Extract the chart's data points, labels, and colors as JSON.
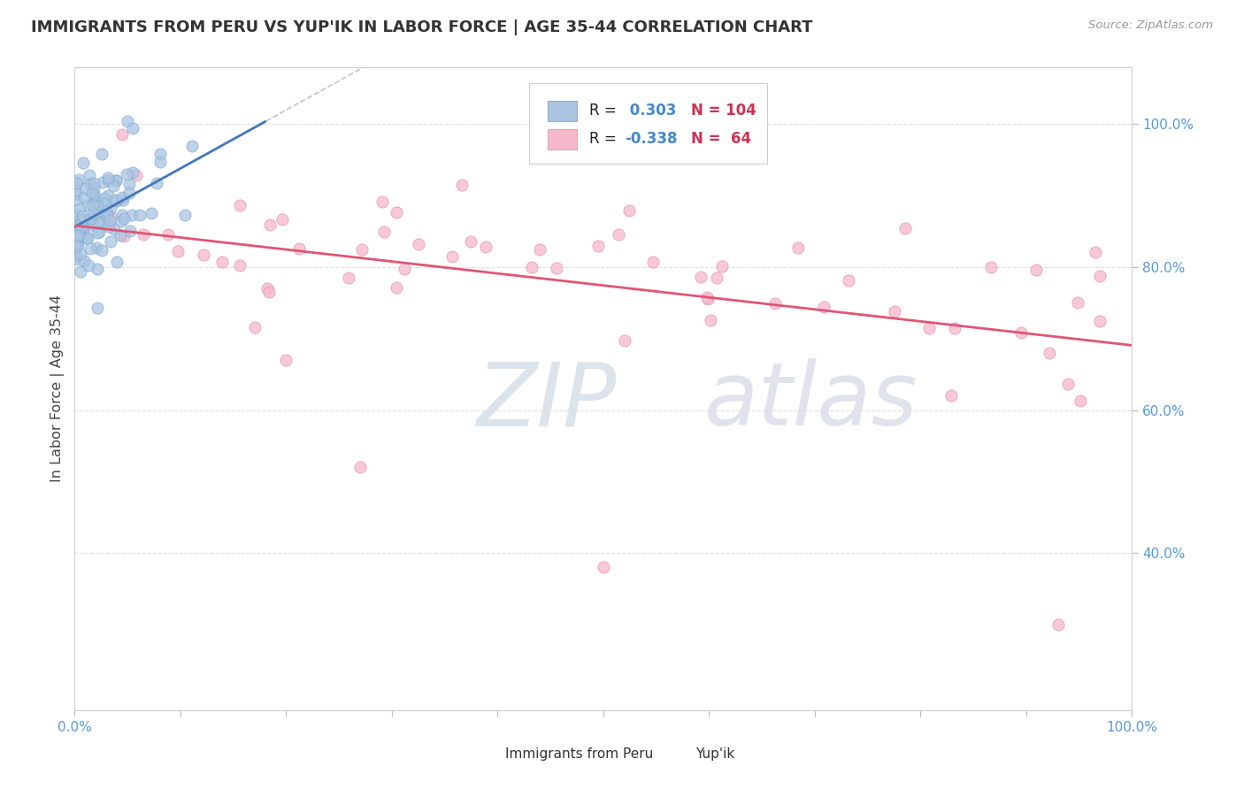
{
  "title": "IMMIGRANTS FROM PERU VS YUP'IK IN LABOR FORCE | AGE 35-44 CORRELATION CHART",
  "source_text": "Source: ZipAtlas.com",
  "ylabel": "In Labor Force | Age 35-44",
  "xlim": [
    0.0,
    1.0
  ],
  "ylim": [
    0.18,
    1.08
  ],
  "color_peru": "#aac4e2",
  "color_peru_edge": "#7aaad0",
  "color_yupik": "#f5b8cc",
  "color_yupik_edge": "#e888a8",
  "color_peru_line": "#4477bb",
  "color_yupik_line": "#e05575",
  "color_dashed": "#aaaaaa",
  "color_title": "#333333",
  "color_source": "#999999",
  "color_tick": "#5599dd",
  "watermark_color": "#c8d8ea",
  "watermark_color2": "#d0c8e8",
  "background_color": "#ffffff",
  "grid_color": "#e0e0e0",
  "legend_r1_val": " 0.303",
  "legend_n1_val": "104",
  "legend_r2_val": "-0.338",
  "legend_n2_val": " 64",
  "peru_seed": 17,
  "yupik_seed": 42
}
